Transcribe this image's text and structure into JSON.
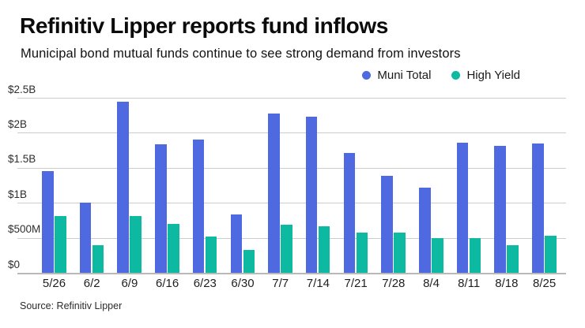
{
  "header": {
    "title": "Refinitiv Lipper reports fund inflows",
    "subtitle": "Municipal bond mutual funds continue to see strong demand from investors"
  },
  "legend": [
    {
      "label": "Muni Total",
      "color": "#4f6ae1",
      "swatch_icon": "circle-dot-icon"
    },
    {
      "label": "High Yield",
      "color": "#0eb9a1",
      "swatch_icon": "circle-dot-icon"
    }
  ],
  "source_note": "Source: Refinitiv Lipper",
  "chart_data": {
    "type": "bar",
    "title": "Refinitiv Lipper reports fund inflows",
    "subtitle": "Municipal bond mutual funds continue to see strong demand from investors",
    "unit": "USD millions",
    "categories": [
      "5/26",
      "6/2",
      "6/9",
      "6/16",
      "6/23",
      "6/30",
      "7/7",
      "7/14",
      "7/21",
      "7/28",
      "8/4",
      "8/11",
      "8/18",
      "8/25"
    ],
    "series": [
      {
        "name": "Muni Total",
        "color": "#4f6ae1",
        "values": [
          1450,
          1000,
          2440,
          1840,
          1900,
          835,
          2270,
          2230,
          1710,
          1390,
          1220,
          1860,
          1810,
          1850
        ]
      },
      {
        "name": "High Yield",
        "color": "#0eb9a1",
        "values": [
          810,
          390,
          815,
          700,
          520,
          325,
          685,
          660,
          580,
          575,
          500,
          500,
          400,
          530
        ]
      }
    ],
    "xlabel": "",
    "ylabel": "",
    "ylim": [
      0,
      2500
    ],
    "yticks": [
      {
        "value": 0,
        "label": "$0"
      },
      {
        "value": 500,
        "label": "$500M"
      },
      {
        "value": 1000,
        "label": "$1B"
      },
      {
        "value": 1500,
        "label": "$1.5B"
      },
      {
        "value": 2000,
        "label": "$2B"
      },
      {
        "value": 2500,
        "label": "$2.5B"
      }
    ],
    "grid": true,
    "legend_position": "top-right",
    "source": "Source: Refinitiv Lipper"
  }
}
